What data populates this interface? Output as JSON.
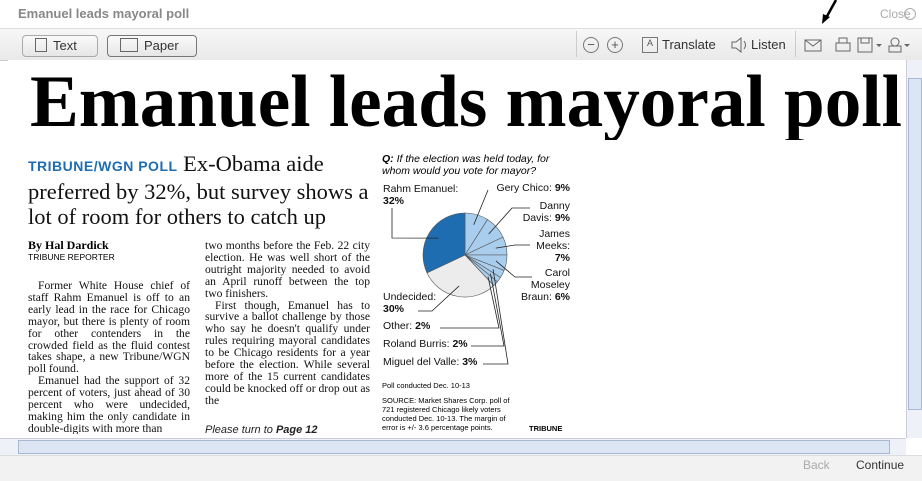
{
  "window": {
    "title": "Emanuel leads mayoral poll",
    "close": "Close"
  },
  "toolbar": {
    "text": "Text",
    "paper": "Paper",
    "translate": "Translate",
    "listen": "Listen"
  },
  "article": {
    "headline": "Emanuel leads mayoral poll",
    "kicker": "TRIBUNE/WGN POLL",
    "deck": "Ex-Obama aide preferred by 32%, but survey shows a lot of room for others to catch up",
    "byline": "By Hal Dardick",
    "credit": "TRIBUNE REPORTER",
    "columns": [
      [
        "Former White House chief of staff Rahm Emanuel is off to an early lead in the race for Chicago mayor, but there is plenty of room for other contenders in the crowded field as the fluid contest takes shape, a new Tribune/WGN poll found.",
        "Emanuel had the support of 32 percent of voters, just ahead of 30 percent who were undecided, making him the only candidate in double-digits with more than"
      ],
      [
        "two months before the Feb. 22 city election. He was well short of the outright majority needed to avoid an April runoff between the top two finishers.",
        "First though, Emanuel has to survive a ballot challenge by those who say he doesn't qualify under rules requiring mayoral candidates to be Chicago residents for a year before the election. While several more of the 15 current candidates could be knocked off or drop out as the"
      ]
    ],
    "jump": "Please turn to",
    "jump_page": "Page 12"
  },
  "chart_data": {
    "type": "pie",
    "question_label": "Q:",
    "title": "If the election was held today, for whom would you vote for mayor?",
    "categories": [
      "Gery Chico:",
      "Danny Davis:",
      "James Meeks:",
      "Carol Moseley Braun:",
      "Miguel del Valle:",
      "Roland Burris:",
      "Other:",
      "Undecided:",
      "Rahm Emanuel:"
    ],
    "values": [
      9,
      9,
      7,
      6,
      3,
      2,
      2,
      30,
      32
    ],
    "value_labels": [
      "9%",
      "9%",
      "7%",
      "6%",
      "3%",
      "2%",
      "2%",
      "30%",
      "32%"
    ],
    "colors": [
      "#a9cdec",
      "#a9cdec",
      "#a9cdec",
      "#a9cdec",
      "#a9cdec",
      "#a9cdec",
      "#a9cdec",
      "#ececec",
      "#1f6db1"
    ],
    "note": "Poll conducted Dec. 10-13",
    "source": "SOURCE: Market Shares Corp. poll of 721 registered Chicago likely voters conducted Dec. 10-13. The margin of error is +/- 3.6 percentage points.",
    "credit": "TRIBUNE"
  },
  "nav": {
    "back": "Back",
    "continue": "Continue"
  }
}
